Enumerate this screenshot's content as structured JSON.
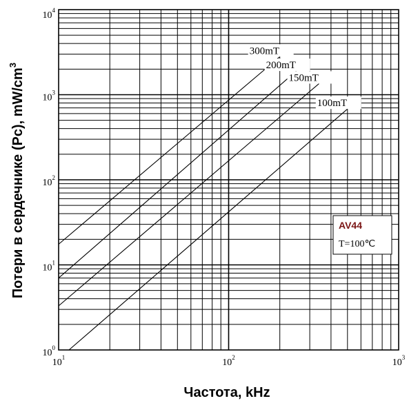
{
  "chart_data": {
    "type": "line",
    "xscale": "log",
    "yscale": "log",
    "xlim": [
      10,
      1000
    ],
    "ylim": [
      1,
      10000
    ],
    "xlabel": "Частота, kHz",
    "ylabel": "Потери в сердечнике (Pc), mW/cm",
    "ylabel_sup": "3",
    "grid": true,
    "x_ticks": [
      {
        "base": "10",
        "exp": "1",
        "value": 10
      },
      {
        "base": "10",
        "exp": "2",
        "value": 100
      },
      {
        "base": "10",
        "exp": "3",
        "value": 1000
      }
    ],
    "y_ticks": [
      {
        "base": "10",
        "exp": "0",
        "value": 1
      },
      {
        "base": "10",
        "exp": "1",
        "value": 10
      },
      {
        "base": "10",
        "exp": "2",
        "value": 100
      },
      {
        "base": "10",
        "exp": "3",
        "value": 1000
      },
      {
        "base": "10",
        "exp": "4",
        "value": 10000
      }
    ],
    "series": [
      {
        "name": "300mT",
        "x": [
          10,
          200
        ],
        "y": [
          17.5,
          2800
        ]
      },
      {
        "name": "200mT",
        "x": [
          10,
          250
        ],
        "y": [
          7,
          1900
        ]
      },
      {
        "name": "150mT",
        "x": [
          10,
          340
        ],
        "y": [
          3.3,
          1350
        ]
      },
      {
        "name": "100mT",
        "x": [
          11.5,
          500
        ],
        "y": [
          1,
          680
        ]
      }
    ],
    "legend": {
      "title": "AV44",
      "text": "T=100℃",
      "placement": "right"
    }
  }
}
